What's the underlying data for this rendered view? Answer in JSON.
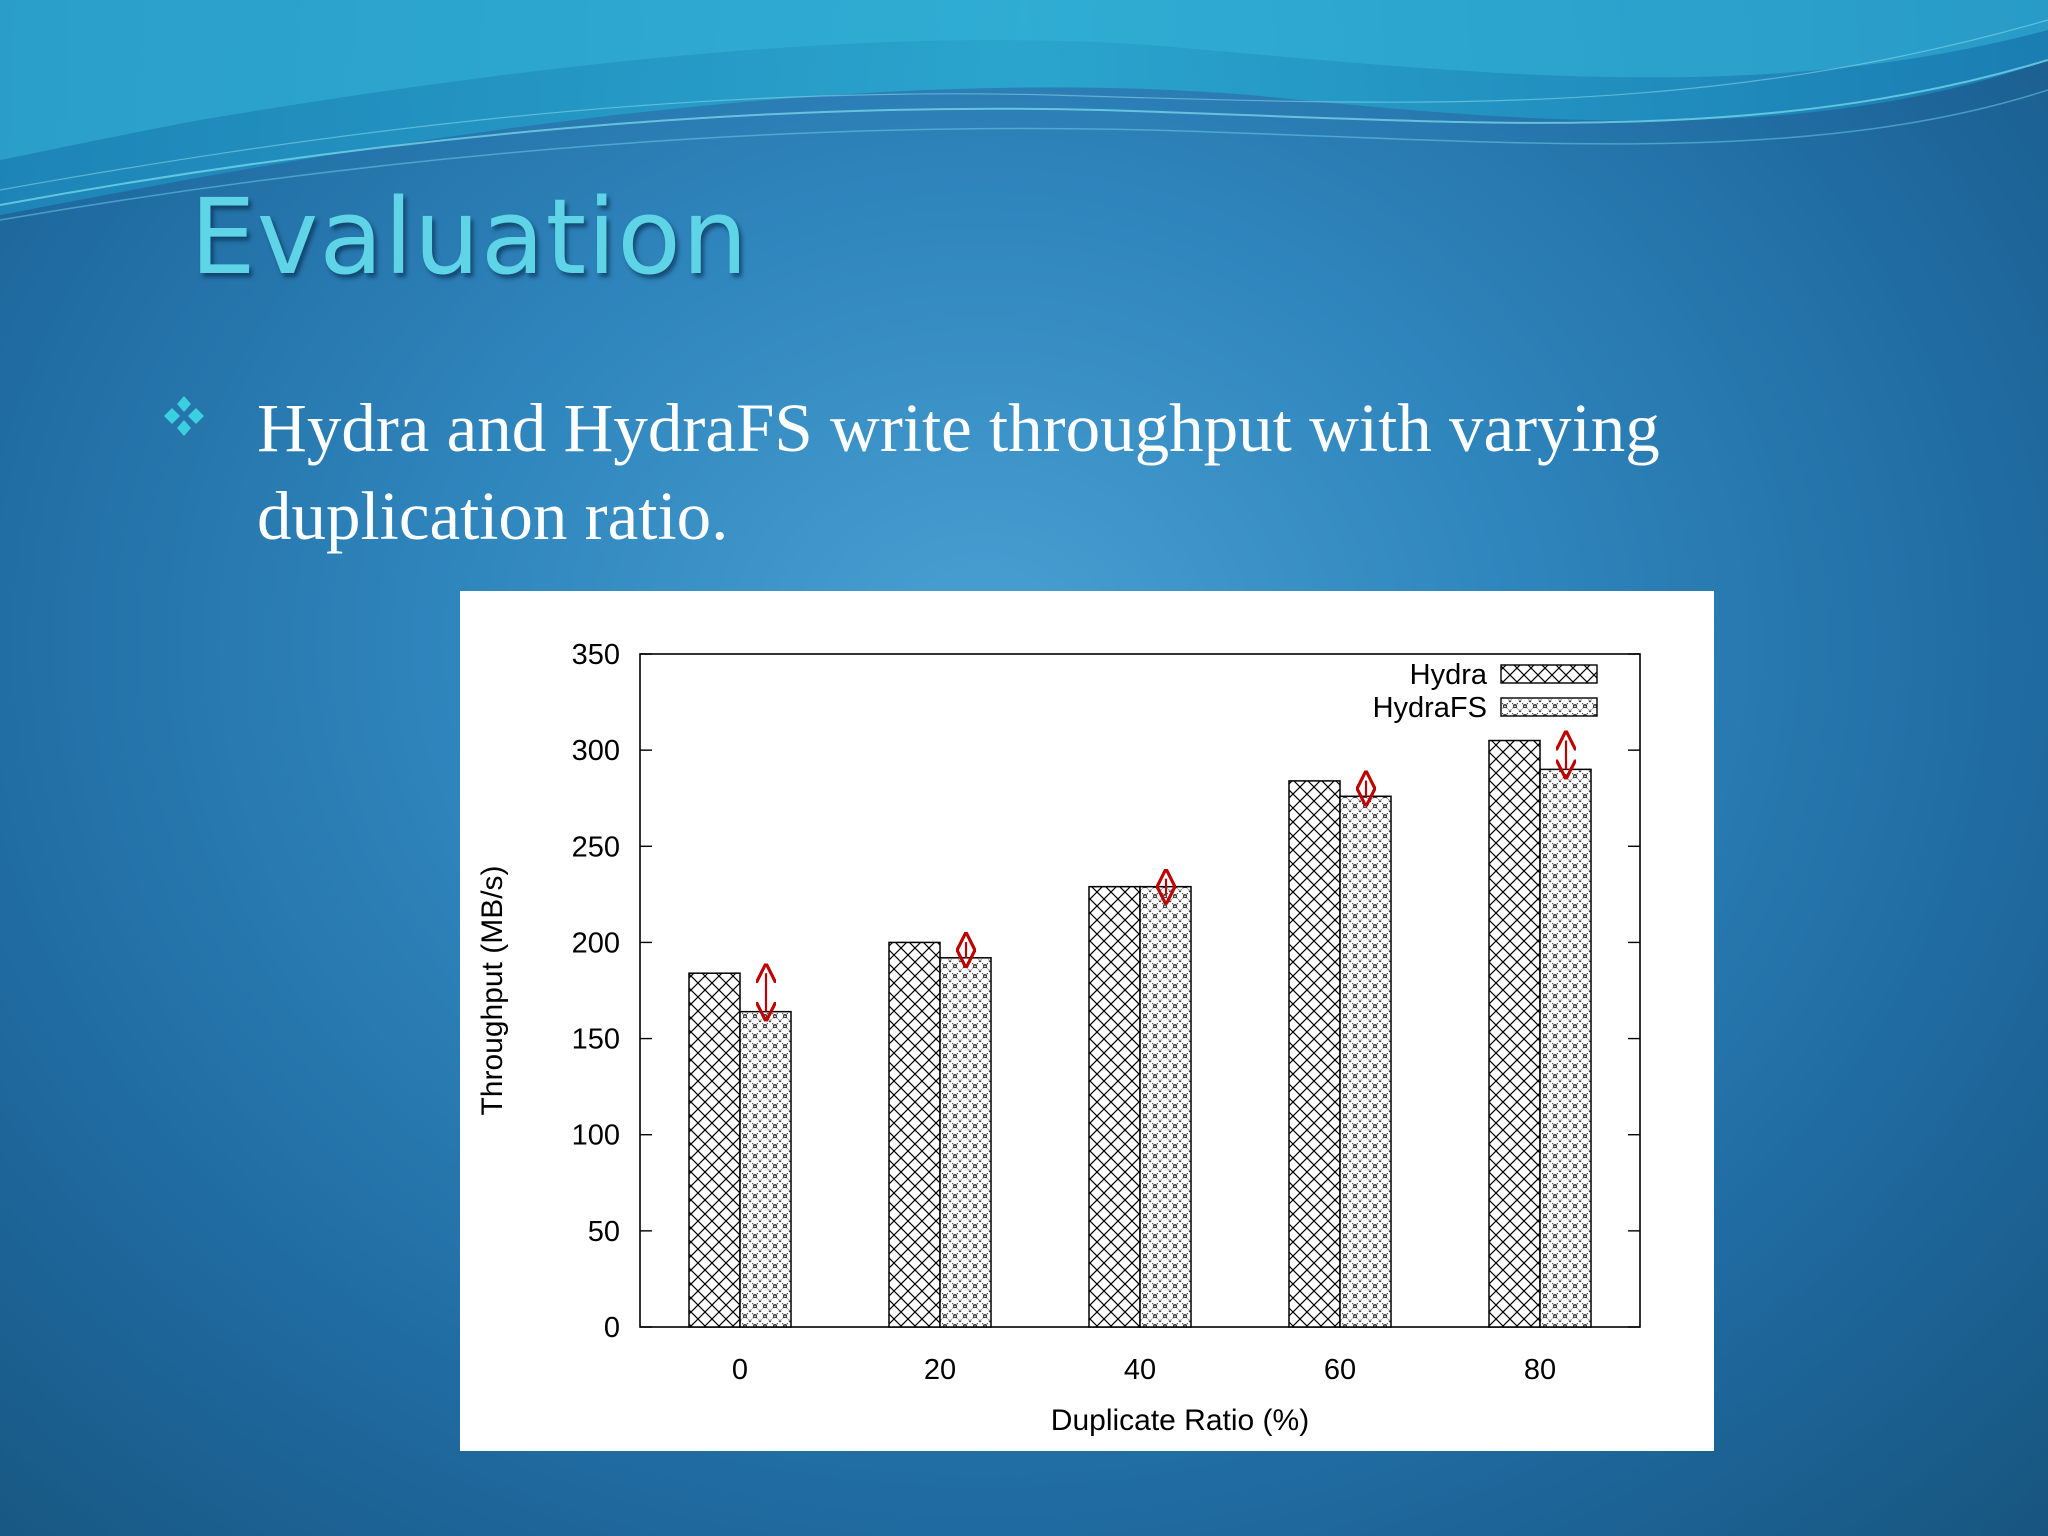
{
  "slide": {
    "title": "Evaluation",
    "bullet": {
      "icon": "diamond-cluster-icon",
      "text": "Hydra and HydraFS write throughput with varying duplication ratio."
    }
  },
  "colors": {
    "title": "#5fd4e6",
    "bullet_icon": "#3ccfe0",
    "arrow": "#c00000"
  },
  "chart_data": {
    "type": "bar",
    "xlabel": "Duplicate Ratio (%)",
    "ylabel": "Throughput (MB/s)",
    "categories": [
      "0",
      "20",
      "40",
      "60",
      "80"
    ],
    "ylim": [
      0,
      350
    ],
    "yticks": [
      "0",
      "50",
      "100",
      "150",
      "200",
      "250",
      "300",
      "350"
    ],
    "legend_position": "top-right",
    "series": [
      {
        "name": "Hydra",
        "values": [
          184,
          200,
          229,
          284,
          305
        ],
        "pattern": "crosshatch"
      },
      {
        "name": "HydraFS",
        "values": [
          164,
          192,
          229,
          276,
          290
        ],
        "pattern": "dotted-crosshatch"
      }
    ],
    "annotations": "red double-headed arrows marking the gap between Hydra and HydraFS in each group"
  }
}
